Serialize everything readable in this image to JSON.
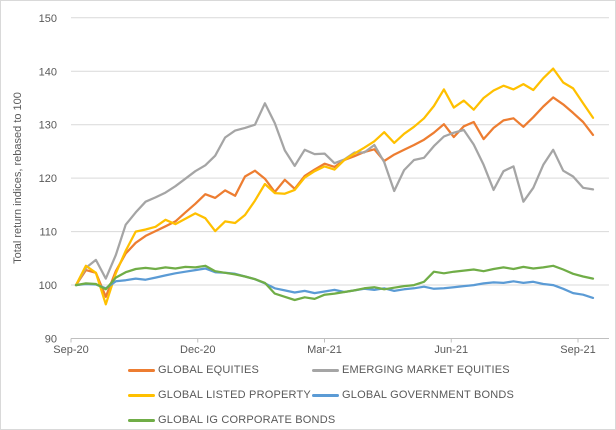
{
  "chart": {
    "y_axis_title": "Total return indices, rebased to 100",
    "x_ticks": [
      "Sep-20",
      "Dec-20",
      "Mar-21",
      "Jun-21",
      "Sep-21"
    ],
    "y_ticks": [
      90,
      100,
      110,
      120,
      130,
      140,
      150
    ]
  },
  "chart_data": {
    "type": "line",
    "title": "",
    "xlabel": "",
    "ylabel": "Total return indices, rebased to 100",
    "ylim": [
      90,
      150
    ],
    "grid": true,
    "legend_position": "bottom",
    "x_tick_labels": [
      "Sep-20",
      "Dec-20",
      "Mar-21",
      "Jun-21",
      "Sep-21"
    ],
    "x_range": [
      "Sep-20",
      "Sep-21"
    ],
    "x_interval": "weekly",
    "y_ticks": [
      90,
      100,
      110,
      120,
      130,
      140,
      150
    ],
    "text_color": "#595959",
    "grid_color": "#d9d9d9",
    "axis_color": "#bfbfbf",
    "series": [
      {
        "id": "global-equities",
        "name": "GLOBAL EQUITIES",
        "color": "#ED7D31",
        "values": [
          100,
          102.8,
          102.3,
          97.8,
          102.6,
          105.9,
          107.9,
          109.2,
          110.1,
          111,
          111.9,
          113.6,
          115.2,
          117,
          116.3,
          117.7,
          116.7,
          120.3,
          121.4,
          119.9,
          117.4,
          119.7,
          118,
          120.4,
          121.6,
          122.7,
          122.1,
          123.4,
          124.1,
          124.9,
          125.4,
          123.2,
          124.4,
          125.3,
          126.2,
          127.2,
          128.5,
          130.1,
          127.7,
          129.7,
          130.5,
          127.3,
          129.4,
          130.8,
          131.2,
          129.6,
          131.4,
          133.4,
          135.1,
          133.8,
          132.2,
          130.5,
          128.1
        ]
      },
      {
        "id": "emerging-market-equities",
        "name": "EMERGING MARKET EQUITIES",
        "color": "#A5A5A5",
        "values": [
          100,
          103.2,
          104.7,
          101.2,
          105.6,
          111.3,
          113.6,
          115.6,
          116.4,
          117.3,
          118.5,
          119.9,
          121.3,
          122.4,
          124.2,
          127.6,
          128.9,
          129.4,
          130,
          134,
          130.3,
          125.2,
          122.3,
          125.3,
          124.5,
          124.6,
          122.8,
          123.5,
          124.8,
          124.8,
          126.2,
          123,
          117.6,
          121.5,
          123.4,
          123.8,
          126,
          127.8,
          128.5,
          129,
          126.3,
          122.5,
          117.8,
          121.3,
          122.2,
          115.6,
          118.2,
          122.5,
          125.3,
          121.4,
          120.3,
          118.2,
          117.9
        ]
      },
      {
        "id": "global-listed-property",
        "name": "GLOBAL LISTED PROPERTY",
        "color": "#FFC000",
        "values": [
          100,
          103.6,
          102.3,
          96.4,
          102.2,
          106.4,
          110,
          110.4,
          110.9,
          112.2,
          111.4,
          112.4,
          113.4,
          112.5,
          110.1,
          111.9,
          111.6,
          113.1,
          115.8,
          118.9,
          117.2,
          117.1,
          117.8,
          120.1,
          121.3,
          122.2,
          121.6,
          123.4,
          124.6,
          125.7,
          126.9,
          128.6,
          126.6,
          128.3,
          129.6,
          131.2,
          133.5,
          136.6,
          133.2,
          134.5,
          132.8,
          135,
          136.4,
          137.3,
          136.6,
          137.6,
          136.5,
          138.7,
          140.5,
          137.9,
          136.8,
          134,
          131.3
        ]
      },
      {
        "id": "global-government-bonds",
        "name": "GLOBAL GOVERNMENT BONDS",
        "color": "#5B9BD5",
        "values": [
          100,
          100.2,
          100.1,
          99.4,
          100.7,
          100.9,
          101.2,
          101,
          101.4,
          101.8,
          102.2,
          102.5,
          102.8,
          103.1,
          102.4,
          102.3,
          102.1,
          101.6,
          101.1,
          100.3,
          99.4,
          99,
          98.6,
          98.9,
          98.5,
          98.8,
          99.1,
          98.7,
          99,
          99.3,
          99.1,
          99.4,
          98.9,
          99.2,
          99.4,
          99.7,
          99.3,
          99.4,
          99.6,
          99.8,
          100,
          100.3,
          100.5,
          100.4,
          100.7,
          100.4,
          100.6,
          100.2,
          100,
          99.3,
          98.5,
          98.2,
          97.6
        ]
      },
      {
        "id": "global-ig-corporate-bonds",
        "name": "GLOBAL IG CORPORATE BONDS",
        "color": "#70AD47",
        "values": [
          100,
          100.3,
          100.2,
          99.2,
          101.4,
          102.4,
          103,
          103.2,
          103,
          103.3,
          103.1,
          103.4,
          103.3,
          103.6,
          102.6,
          102.3,
          102,
          101.6,
          101.1,
          100.4,
          98.4,
          97.8,
          97.2,
          97.7,
          97.4,
          98.2,
          98.4,
          98.7,
          99,
          99.4,
          99.6,
          99.2,
          99.5,
          99.8,
          100,
          100.6,
          102.5,
          102.2,
          102.5,
          102.7,
          102.9,
          102.6,
          103,
          103.3,
          103,
          103.4,
          103.1,
          103.3,
          103.6,
          102.9,
          102.1,
          101.6,
          101.2
        ]
      }
    ]
  }
}
